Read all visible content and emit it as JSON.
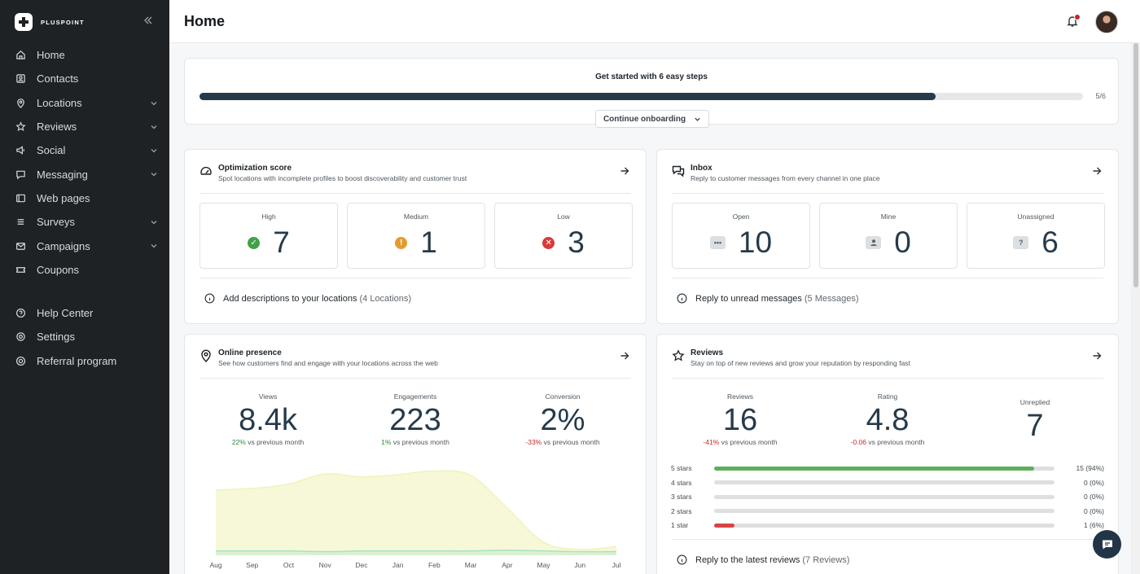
{
  "brand": {
    "name": "PLUSPOINT"
  },
  "sidebar": {
    "items": [
      {
        "label": "Home",
        "icon": "home-icon",
        "active": true,
        "chevron": false
      },
      {
        "label": "Contacts",
        "icon": "contacts-icon",
        "active": false,
        "chevron": false
      },
      {
        "label": "Locations",
        "icon": "location-pin-icon",
        "active": false,
        "chevron": true
      },
      {
        "label": "Reviews",
        "icon": "star-icon",
        "active": false,
        "chevron": true
      },
      {
        "label": "Social",
        "icon": "social-icon",
        "active": false,
        "chevron": true
      },
      {
        "label": "Messaging",
        "icon": "message-icon",
        "active": false,
        "chevron": true
      },
      {
        "label": "Web pages",
        "icon": "web-page-icon",
        "active": false,
        "chevron": false
      },
      {
        "label": "Surveys",
        "icon": "survey-icon",
        "active": false,
        "chevron": true
      },
      {
        "label": "Campaigns",
        "icon": "mail-icon",
        "active": false,
        "chevron": true
      },
      {
        "label": "Coupons",
        "icon": "coupon-icon",
        "active": false,
        "chevron": false
      }
    ],
    "bottom_items": [
      {
        "label": "Help Center",
        "icon": "help-icon"
      },
      {
        "label": "Settings",
        "icon": "gear-icon"
      },
      {
        "label": "Referral program",
        "icon": "referral-icon"
      }
    ]
  },
  "header": {
    "title": "Home"
  },
  "onboarding": {
    "title": "Get started with 6 easy steps",
    "progress": 0.8333,
    "count": "5/6",
    "button": "Continue onboarding"
  },
  "optimization": {
    "title": "Optimization score",
    "subtitle": "Spot locations with incomplete profiles to boost discoverability and customer trust",
    "stats": [
      {
        "label": "High",
        "value": "7",
        "status": "good",
        "color": "#43a047"
      },
      {
        "label": "Medium",
        "value": "1",
        "status": "warning",
        "color": "#e59a2f"
      },
      {
        "label": "Low",
        "value": "3",
        "status": "error",
        "color": "#d63b3b"
      }
    ],
    "hint": "Add descriptions to your locations",
    "hint_count": "(4 Locations)"
  },
  "inbox": {
    "title": "Inbox",
    "subtitle": "Reply to customer messages from every channel in one place",
    "stats": [
      {
        "label": "Open",
        "value": "10",
        "icon": "chat-bubble-icon"
      },
      {
        "label": "Mine",
        "value": "0",
        "icon": "person-icon"
      },
      {
        "label": "Unassigned",
        "value": "6",
        "icon": "question-icon"
      }
    ],
    "hint": "Reply to unread messages",
    "hint_count": "(5 Messages)"
  },
  "presence": {
    "title": "Online presence",
    "subtitle": "See how customers find and engage with your locations across the web",
    "metrics": [
      {
        "label": "Views",
        "value": "8.4k",
        "delta": "22%",
        "delta_dir": "up",
        "suffix": "vs previous month"
      },
      {
        "label": "Engagements",
        "value": "223",
        "delta": "1%",
        "delta_dir": "up",
        "suffix": "vs previous month"
      },
      {
        "label": "Conversion",
        "value": "2%",
        "delta": "-33%",
        "delta_dir": "down",
        "suffix": "vs previous month"
      }
    ]
  },
  "chart_data": {
    "type": "area",
    "categories": [
      "Aug",
      "Sep",
      "Oct",
      "Nov",
      "Dec",
      "Jan",
      "Feb",
      "Mar",
      "Apr",
      "May",
      "Jun",
      "Jul"
    ],
    "series": [
      {
        "values": [
          90,
          92,
          98,
          112,
          108,
          111,
          116,
          110,
          65,
          18,
          8,
          12
        ],
        "color": "#f1f3b8"
      },
      {
        "values": [
          6,
          6,
          6,
          5,
          6,
          6,
          6,
          6,
          7,
          6,
          5,
          5
        ],
        "color": "#a6e3c6"
      }
    ],
    "ylim": [
      0,
      130
    ],
    "grid": false
  },
  "reviews": {
    "title": "Reviews",
    "subtitle": "Stay on top of new reviews and grow your reputation by responding fast",
    "metrics": [
      {
        "label": "Reviews",
        "value": "16",
        "delta": "-41%",
        "delta_dir": "down",
        "suffix": "vs previous month"
      },
      {
        "label": "Rating",
        "value": "4.8",
        "delta": "-0.06",
        "delta_dir": "down",
        "suffix": "vs previous month"
      },
      {
        "label": "Unreplied",
        "value": "7"
      }
    ],
    "breakdown": [
      {
        "label": "5 stars",
        "count": "15 (94%)",
        "fraction": 0.94,
        "color": "#5fae5c"
      },
      {
        "label": "4 stars",
        "count": "0 (0%)",
        "fraction": 0,
        "color": "#5fae5c"
      },
      {
        "label": "3 stars",
        "count": "0 (0%)",
        "fraction": 0,
        "color": "#5fae5c"
      },
      {
        "label": "2 stars",
        "count": "0 (0%)",
        "fraction": 0,
        "color": "#5fae5c"
      },
      {
        "label": "1 star",
        "count": "1 (6%)",
        "fraction": 0.06,
        "color": "#d64545"
      }
    ],
    "hint": "Reply to the latest reviews",
    "hint_count": "(7 Reviews)"
  }
}
